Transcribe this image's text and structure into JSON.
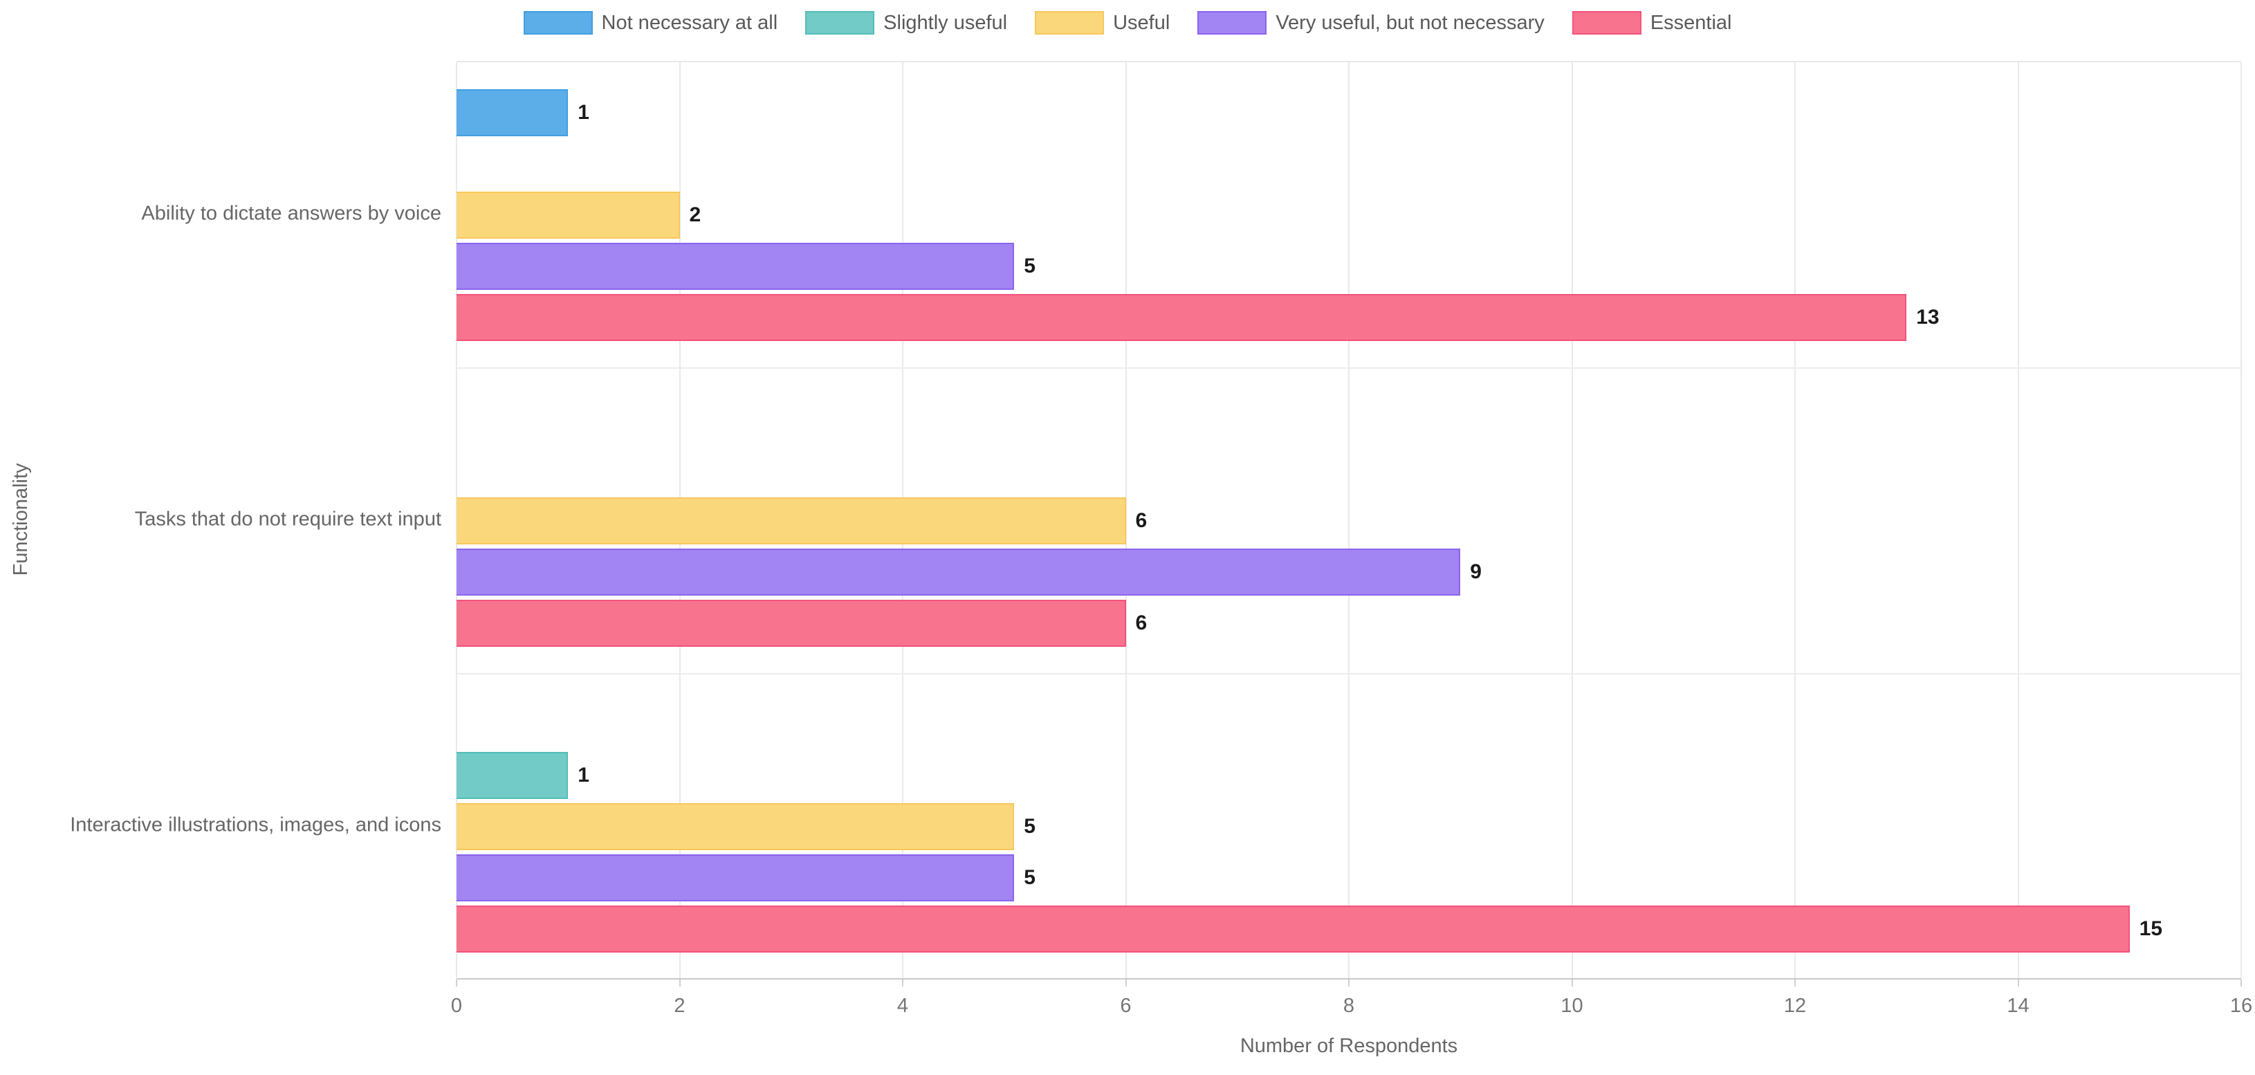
{
  "chart_data": {
    "type": "bar",
    "orientation": "horizontal",
    "xlabel": "Number of Respondents",
    "ylabel": "Functionality",
    "xlim": [
      0,
      16
    ],
    "xticks": [
      0,
      2,
      4,
      6,
      8,
      10,
      12,
      14,
      16
    ],
    "grid": true,
    "legend_position": "top",
    "bar_value_labels_shown": true,
    "categories": [
      "Ability to dictate answers by voice",
      "Tasks that do not require text input",
      "Interactive illustrations, images, and icons"
    ],
    "series": [
      {
        "name": "Not necessary at all",
        "fill": "#5CAEE9",
        "border": "#419EDF",
        "values": [
          1,
          0,
          0
        ]
      },
      {
        "name": "Slightly useful",
        "fill": "#72CBC7",
        "border": "#52BDB7",
        "values": [
          0,
          0,
          1
        ]
      },
      {
        "name": "Useful",
        "fill": "#FBD77C",
        "border": "#F7C85C",
        "values": [
          2,
          6,
          5
        ]
      },
      {
        "name": "Very useful, but not necessary",
        "fill": "#A285F2",
        "border": "#8A64EE",
        "values": [
          5,
          9,
          5
        ]
      },
      {
        "name": "Essential",
        "fill": "#F8738E",
        "border": "#F2527C",
        "values": [
          13,
          6,
          15
        ]
      }
    ]
  }
}
